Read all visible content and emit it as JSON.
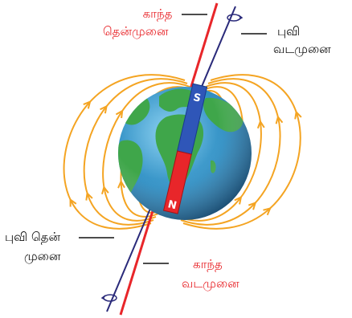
{
  "labels": {
    "magnetic_south_line1": "காந்த",
    "magnetic_south_line2": "தென்முனை",
    "geographic_north_line1": "புவி",
    "geographic_north_line2": "வடமுனை",
    "geographic_south_line1": "புவி தென்",
    "geographic_south_line2": "முனை",
    "magnetic_north_line1": "காந்த",
    "magnetic_north_line2": "வடமுனை",
    "magnet_s_letter": "S",
    "magnet_n_letter": "N"
  },
  "colors": {
    "field_lines": "#f4a422",
    "magnetic_axis": "#e8262a",
    "rotation_axis": "#2a2a7a",
    "magnet_south_half": "#2f56b8",
    "magnet_north_half": "#e8262a",
    "ocean": "#2f8fc4",
    "land": "#3fa64a",
    "magnetic_label": "#e8262a",
    "geographic_label": "#111111"
  },
  "icons": [
    "rotation-arrow-icon-top",
    "rotation-arrow-icon-bottom"
  ]
}
